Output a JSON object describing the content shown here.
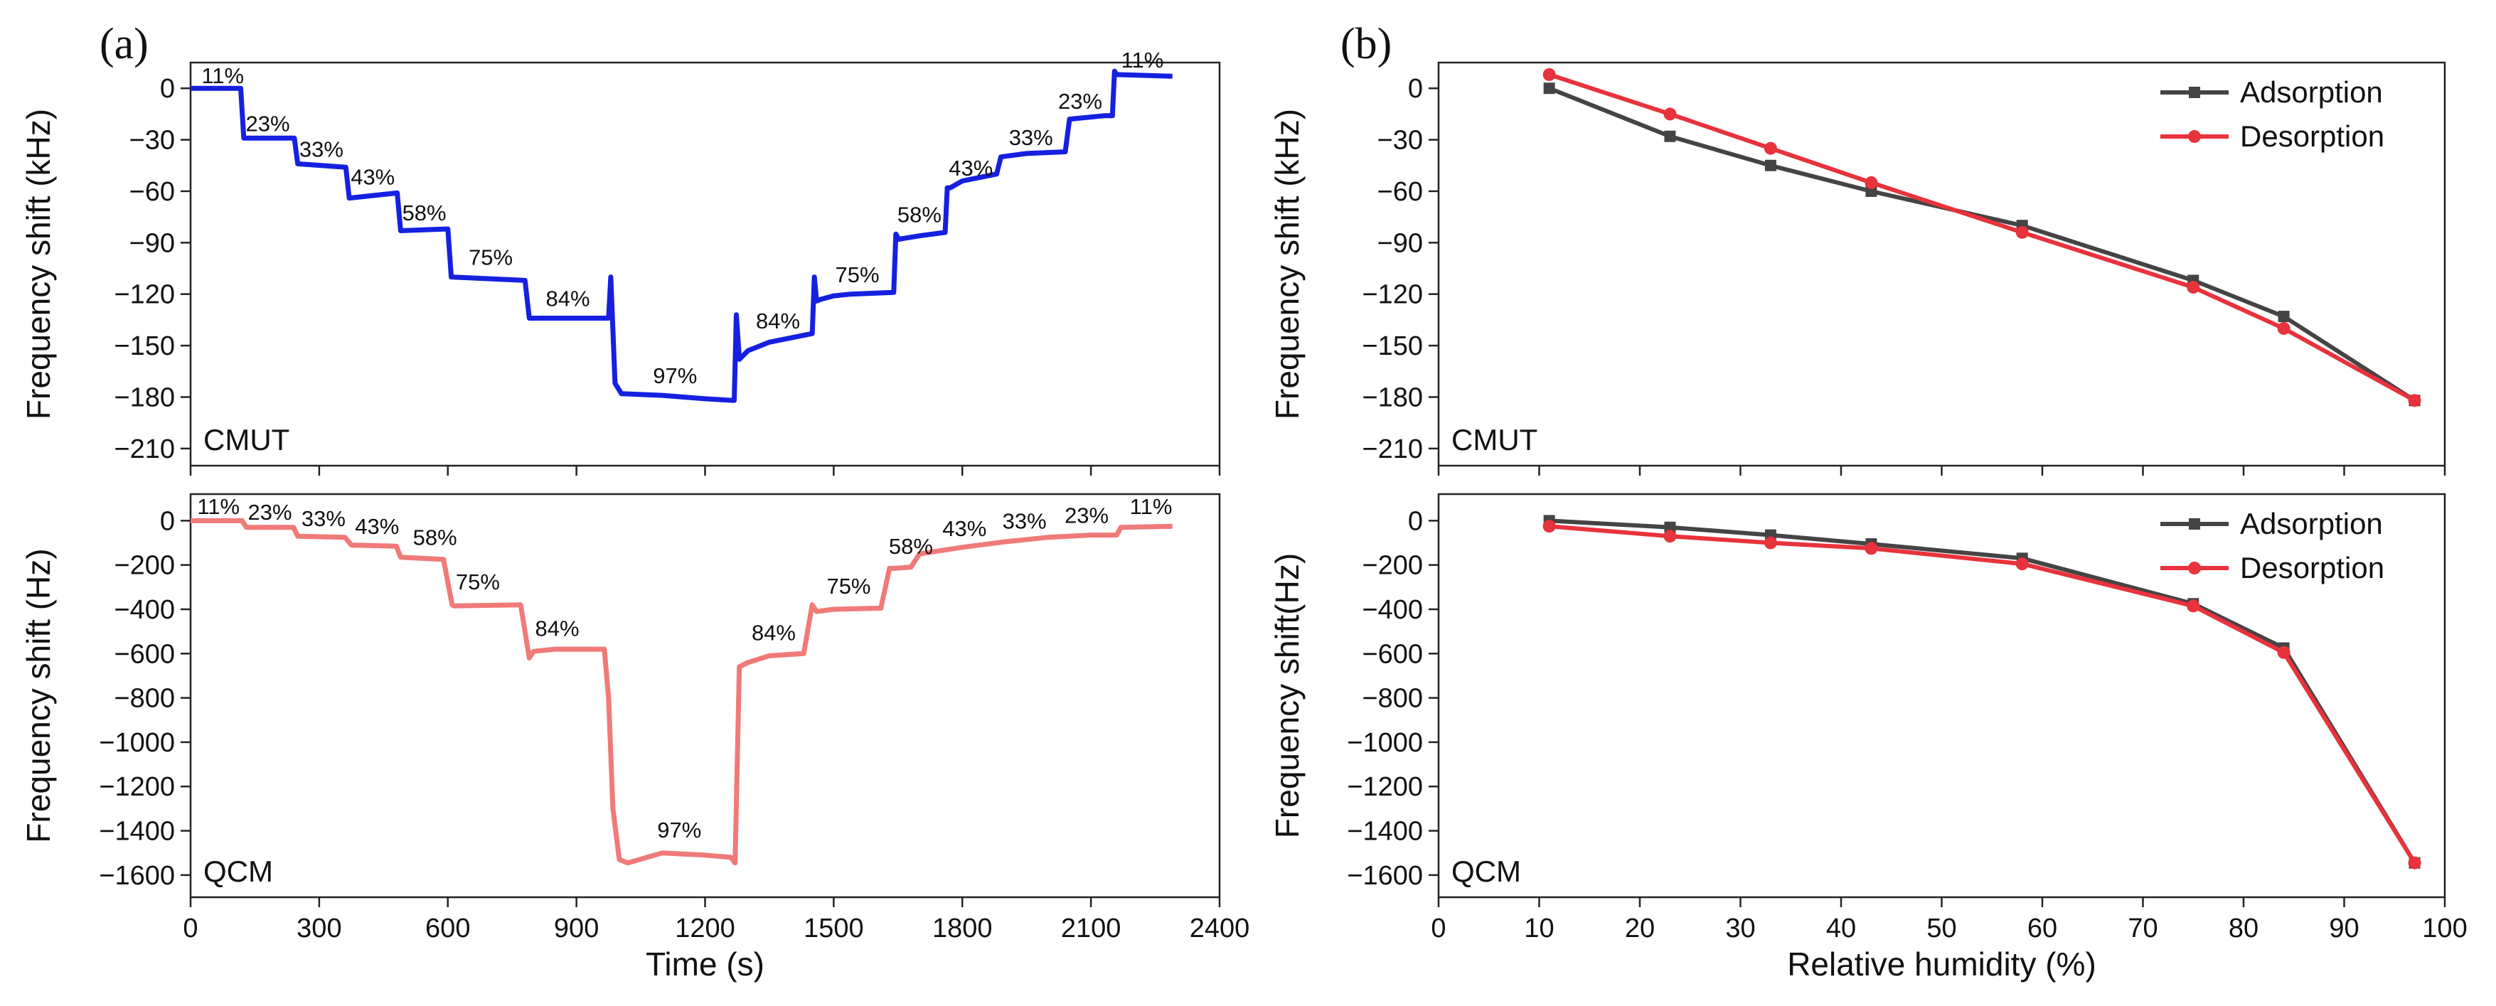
{
  "chart_data": [
    {
      "panel": "(a)",
      "type": "line",
      "sensor": "CMUT",
      "xlabel": "Time (s)",
      "ylabel": "Frequency shift (kHz)",
      "xlim": [
        0,
        2400
      ],
      "ylim": [
        -220,
        15
      ],
      "xticks": [
        0,
        300,
        600,
        900,
        1200,
        1500,
        1800,
        2100,
        2400
      ],
      "yticks": [
        0,
        -30,
        -60,
        -90,
        -120,
        -150,
        -180,
        -210
      ],
      "color": "#1520e0",
      "series": [
        {
          "x": [
            0,
            117,
            124,
            242,
            250,
            362,
            370,
            482,
            490,
            600,
            608,
            780,
            790,
            975,
            980,
            990,
            1005,
            1100,
            1200,
            1268,
            1273,
            1280,
            1300,
            1350,
            1450,
            1455,
            1460,
            1470,
            1500,
            1540,
            1640,
            1645,
            1652,
            1700,
            1760,
            1765,
            1772,
            1800,
            1880,
            1890,
            1950,
            2040,
            2050,
            2130,
            2150,
            2155,
            2160,
            2290
          ],
          "y": [
            0,
            0,
            -29,
            -29,
            -44,
            -46,
            -64,
            -61,
            -83,
            -82,
            -110,
            -112,
            -134,
            -134,
            -110,
            -172,
            -178,
            -179,
            -181,
            -182,
            -132,
            -158,
            -153,
            -148,
            -143,
            -110,
            -124,
            -123,
            -121,
            -120,
            -119,
            -85,
            -88,
            -86,
            -84,
            -58,
            -58,
            -54,
            -50,
            -40,
            -38,
            -37,
            -18,
            -16,
            -16,
            10,
            8,
            7
          ]
        }
      ],
      "annotations": [
        {
          "text": "11%",
          "x": 75,
          "y": 3
        },
        {
          "text": "23%",
          "x": 180,
          "y": -25
        },
        {
          "text": "33%",
          "x": 305,
          "y": -40
        },
        {
          "text": "43%",
          "x": 425,
          "y": -56
        },
        {
          "text": "58%",
          "x": 545,
          "y": -77
        },
        {
          "text": "75%",
          "x": 700,
          "y": -103
        },
        {
          "text": "84%",
          "x": 880,
          "y": -127
        },
        {
          "text": "97%",
          "x": 1130,
          "y": -172
        },
        {
          "text": "84%",
          "x": 1370,
          "y": -140
        },
        {
          "text": "75%",
          "x": 1555,
          "y": -113
        },
        {
          "text": "58%",
          "x": 1700,
          "y": -78
        },
        {
          "text": "43%",
          "x": 1820,
          "y": -51
        },
        {
          "text": "33%",
          "x": 1960,
          "y": -33
        },
        {
          "text": "23%",
          "x": 2075,
          "y": -12
        },
        {
          "text": "11%",
          "x": 2220,
          "y": 12
        }
      ]
    },
    {
      "panel": "(a)",
      "type": "line",
      "sensor": "QCM",
      "xlabel": "Time (s)",
      "ylabel": "Frequency shift (Hz)",
      "xlim": [
        0,
        2400
      ],
      "ylim": [
        -1700,
        120
      ],
      "xticks": [
        0,
        300,
        600,
        900,
        1200,
        1500,
        1800,
        2100,
        2400
      ],
      "yticks": [
        0,
        -200,
        -400,
        -600,
        -800,
        -1000,
        -1200,
        -1400,
        -1600
      ],
      "color": "#f07a78",
      "series": [
        {
          "x": [
            0,
            120,
            130,
            240,
            250,
            360,
            375,
            480,
            490,
            590,
            610,
            615,
            770,
            790,
            800,
            850,
            965,
            975,
            985,
            1000,
            1020,
            1100,
            1200,
            1260,
            1270,
            1280,
            1300,
            1350,
            1430,
            1450,
            1460,
            1500,
            1610,
            1630,
            1640,
            1680,
            1700,
            1800,
            1900,
            2000,
            2100,
            2160,
            2170,
            2290
          ],
          "y": [
            0,
            0,
            -30,
            -30,
            -70,
            -75,
            -110,
            -115,
            -165,
            -175,
            -380,
            -385,
            -380,
            -620,
            -590,
            -580,
            -580,
            -800,
            -1300,
            -1530,
            -1545,
            -1500,
            -1510,
            -1520,
            -1545,
            -660,
            -640,
            -610,
            -600,
            -380,
            -410,
            -400,
            -395,
            -215,
            -215,
            -210,
            -150,
            -120,
            -95,
            -75,
            -65,
            -65,
            -30,
            -25
          ]
        }
      ],
      "annotations": [
        {
          "text": "11%",
          "x": 65,
          "y": 30
        },
        {
          "text": "23%",
          "x": 185,
          "y": 5
        },
        {
          "text": "33%",
          "x": 310,
          "y": -25
        },
        {
          "text": "43%",
          "x": 435,
          "y": -60
        },
        {
          "text": "58%",
          "x": 570,
          "y": -110
        },
        {
          "text": "75%",
          "x": 670,
          "y": -310
        },
        {
          "text": "84%",
          "x": 855,
          "y": -520
        },
        {
          "text": "97%",
          "x": 1140,
          "y": -1430
        },
        {
          "text": "84%",
          "x": 1360,
          "y": -540
        },
        {
          "text": "75%",
          "x": 1535,
          "y": -330
        },
        {
          "text": "58%",
          "x": 1680,
          "y": -150
        },
        {
          "text": "43%",
          "x": 1805,
          "y": -70
        },
        {
          "text": "33%",
          "x": 1945,
          "y": -35
        },
        {
          "text": "23%",
          "x": 2090,
          "y": -10
        },
        {
          "text": "11%",
          "x": 2240,
          "y": 30
        }
      ]
    },
    {
      "panel": "(b)",
      "type": "line",
      "sensor": "CMUT",
      "xlabel": "Relative humidity (%)",
      "ylabel": "Frequency shift (kHz)",
      "xlim": [
        0,
        100
      ],
      "ylim": [
        -220,
        15
      ],
      "xticks": [
        0,
        10,
        20,
        30,
        40,
        50,
        60,
        70,
        80,
        90,
        100
      ],
      "yticks": [
        0,
        -30,
        -60,
        -90,
        -120,
        -150,
        -180,
        -210
      ],
      "legend_position": "top-right",
      "categories": [
        11,
        23,
        33,
        43,
        58,
        75,
        84,
        97
      ],
      "series": [
        {
          "name": "Adsorption",
          "color": "#444444",
          "marker": "square",
          "values": [
            0,
            -28,
            -45,
            -60,
            -80,
            -112,
            -133,
            -182
          ]
        },
        {
          "name": "Desorption",
          "color": "#e8323c",
          "marker": "circle",
          "values": [
            8,
            -15,
            -35,
            -55,
            -84,
            -116,
            -140,
            -182
          ]
        }
      ]
    },
    {
      "panel": "(b)",
      "type": "line",
      "sensor": "QCM",
      "xlabel": "Relative humidity (%)",
      "ylabel": "Frequency shift(Hz)",
      "xlim": [
        0,
        100
      ],
      "ylim": [
        -1700,
        120
      ],
      "xticks": [
        0,
        10,
        20,
        30,
        40,
        50,
        60,
        70,
        80,
        90,
        100
      ],
      "yticks": [
        0,
        -200,
        -400,
        -600,
        -800,
        -1000,
        -1200,
        -1400,
        -1600
      ],
      "legend_position": "top-right",
      "categories": [
        11,
        23,
        33,
        43,
        58,
        75,
        84,
        97
      ],
      "series": [
        {
          "name": "Adsorption",
          "color": "#444444",
          "marker": "square",
          "values": [
            0,
            -30,
            -65,
            -105,
            -170,
            -375,
            -575,
            -1545
          ]
        },
        {
          "name": "Desorption",
          "color": "#e8323c",
          "marker": "circle",
          "values": [
            -25,
            -70,
            -100,
            -125,
            -195,
            -385,
            -595,
            -1545
          ]
        }
      ]
    }
  ]
}
